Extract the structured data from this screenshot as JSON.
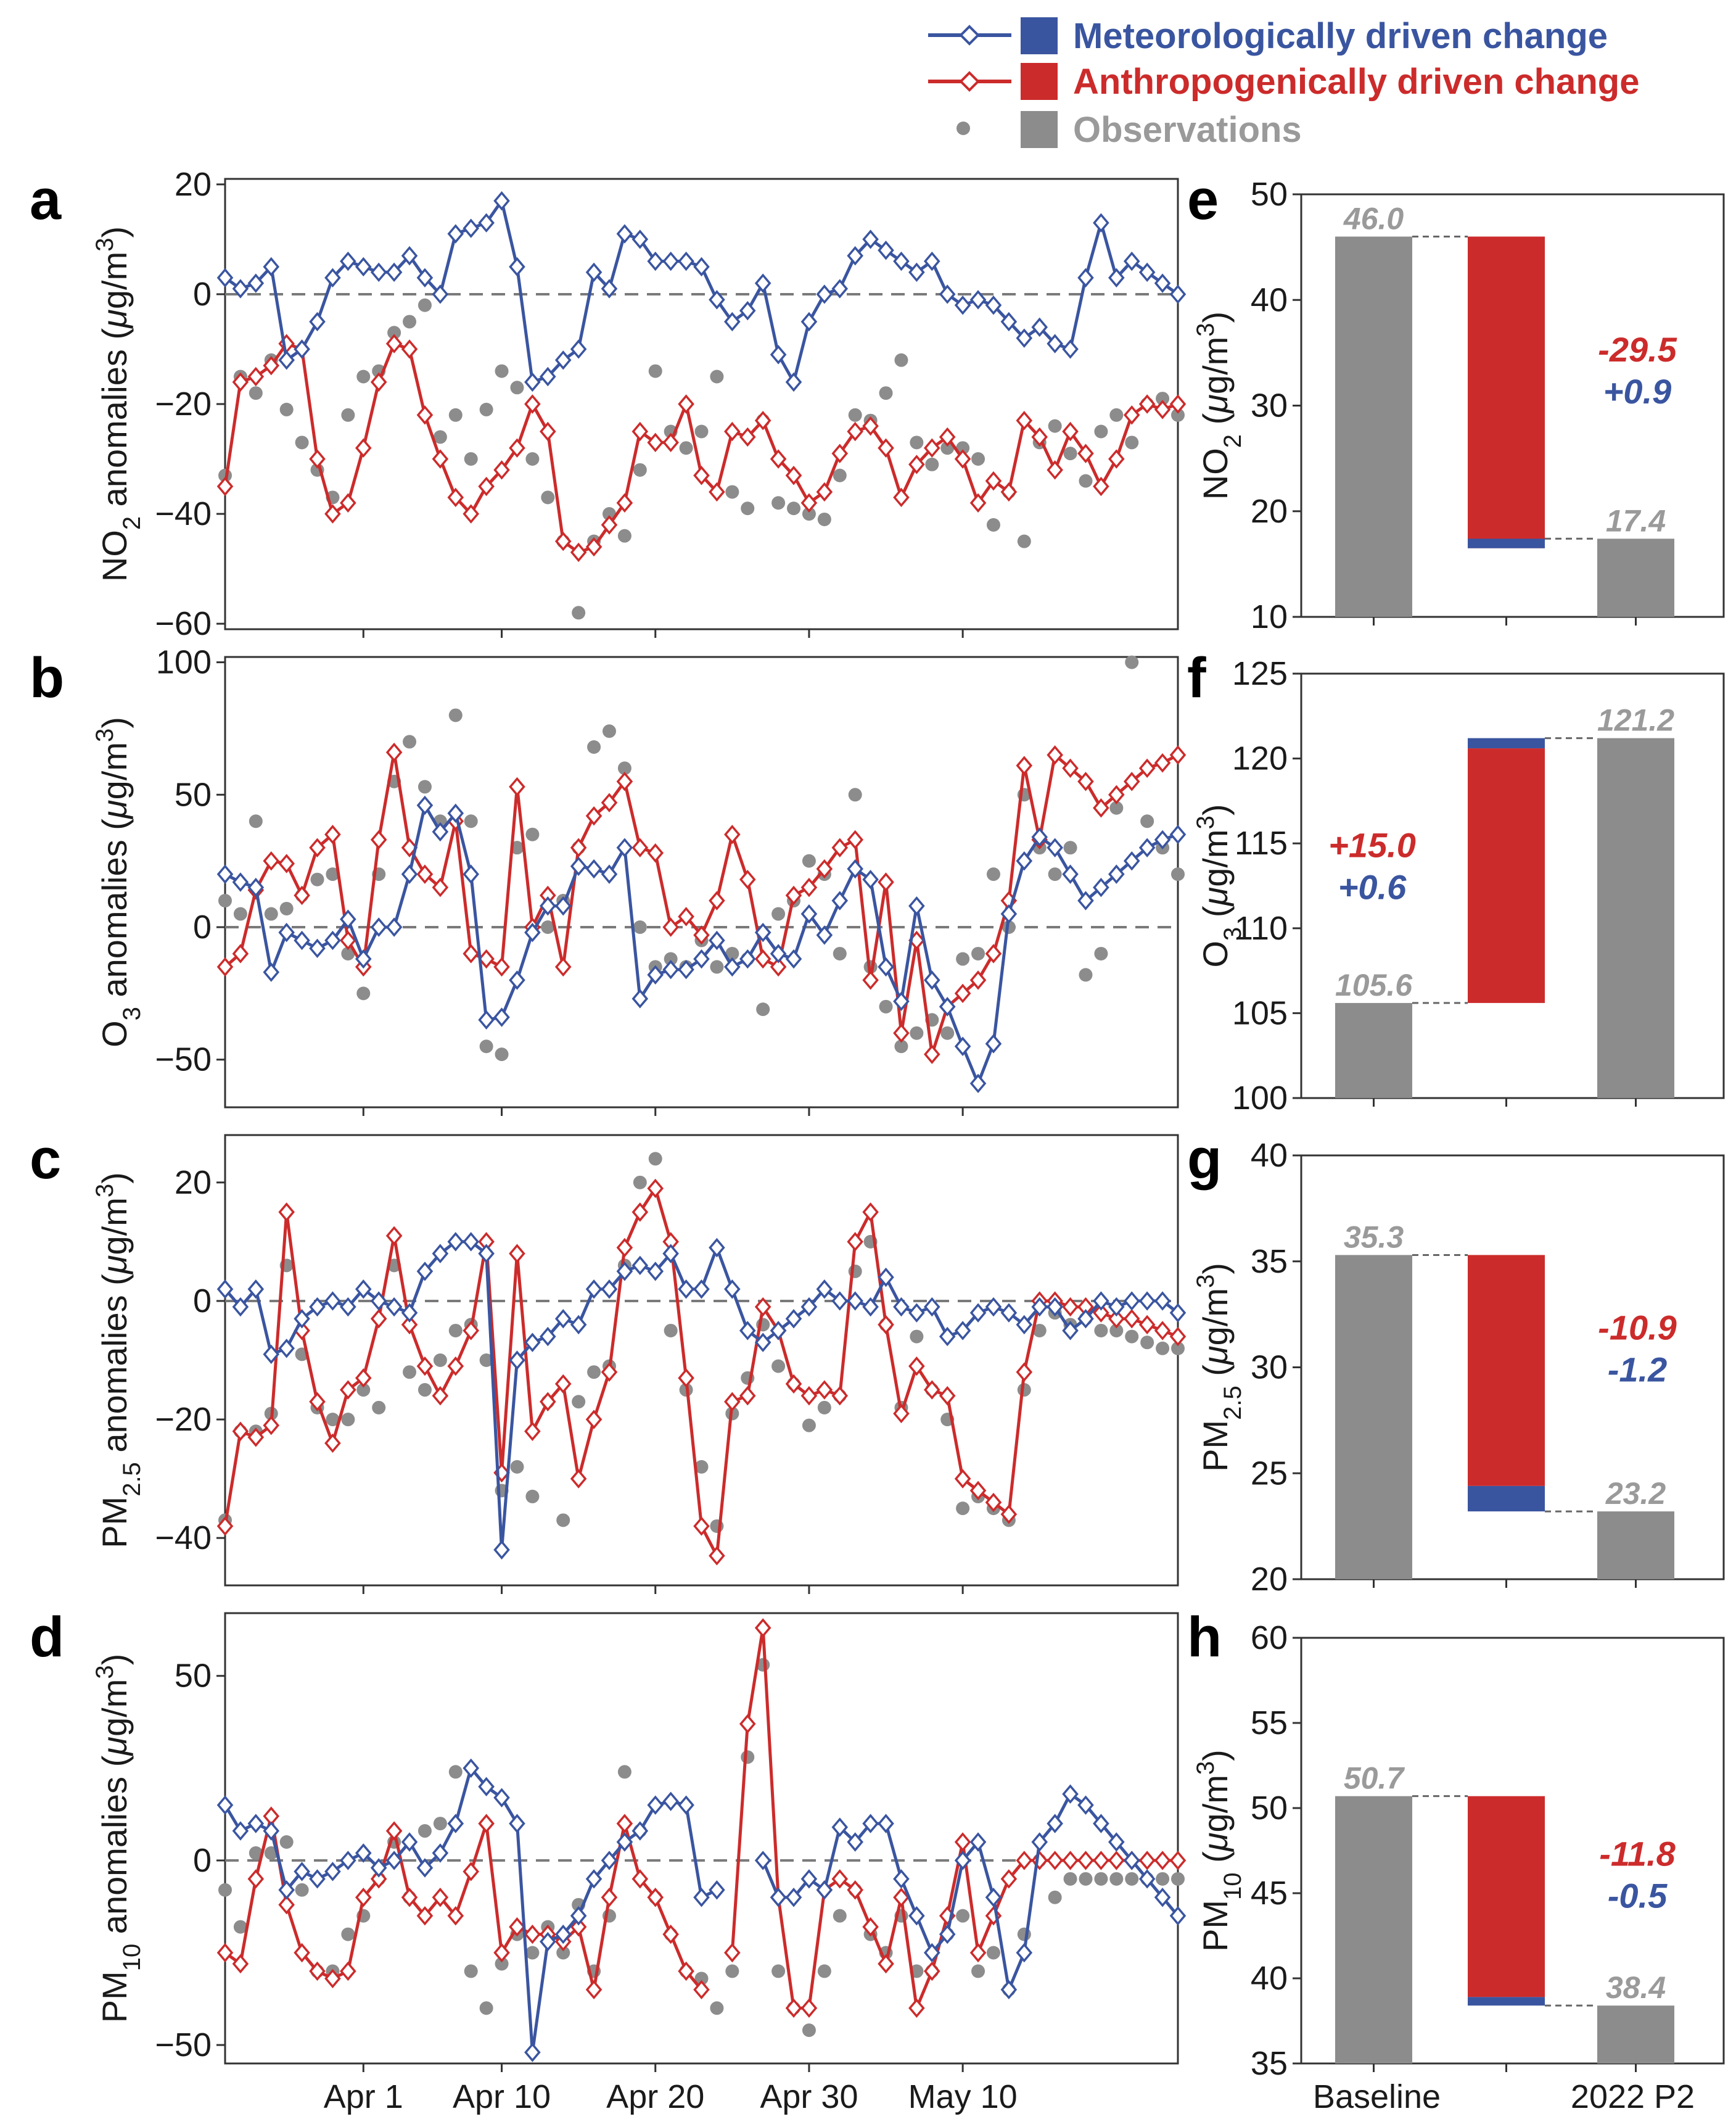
{
  "legend": {
    "met_label": "Meteorologically driven change",
    "anthro_label": "Anthropogenically driven change",
    "obs_label": "Observations",
    "met_color": "#3a55a0",
    "anthro_color": "#cc2b2b",
    "obs_color": "#8c8c8c"
  },
  "chart_data": [
    {
      "panel": "a",
      "type": "line",
      "ylabel": "NO2 anomalies (μg/m3)",
      "ylim": [
        -61,
        21
      ],
      "yticks": [
        20,
        0,
        -20,
        -40,
        -60
      ],
      "grid": false,
      "xticklabels": [
        "Apr 1",
        "Apr 10",
        "Apr 20",
        "Apr 30",
        "May 10"
      ],
      "x": [
        "Mar 23",
        "Mar 24",
        "Mar 25",
        "Mar 26",
        "Mar 27",
        "Mar 28",
        "Mar 29",
        "Mar 30",
        "Mar 31",
        "Apr 1",
        "Apr 2",
        "Apr 3",
        "Apr 4",
        "Apr 5",
        "Apr 6",
        "Apr 7",
        "Apr 8",
        "Apr 9",
        "Apr 10",
        "Apr 11",
        "Apr 12",
        "Apr 13",
        "Apr 14",
        "Apr 15",
        "Apr 16",
        "Apr 17",
        "Apr 18",
        "Apr 19",
        "Apr 20",
        "Apr 21",
        "Apr 22",
        "Apr 23",
        "Apr 24",
        "Apr 25",
        "Apr 26",
        "Apr 27",
        "Apr 28",
        "Apr 29",
        "Apr 30",
        "May 1",
        "May 2",
        "May 3",
        "May 4",
        "May 5",
        "May 6",
        "May 7",
        "May 8",
        "May 9",
        "May 10",
        "May 11",
        "May 12",
        "May 13",
        "May 14",
        "May 15",
        "May 16",
        "May 17",
        "May 18",
        "May 19",
        "May 20",
        "May 21",
        "May 22",
        "May 23",
        "May 24"
      ],
      "series": [
        {
          "name": "Meteorologically driven change",
          "values": [
            3,
            1,
            2,
            5,
            -12,
            -10,
            -5,
            3,
            6,
            5,
            4,
            4,
            7,
            3,
            0,
            11,
            12,
            13,
            17,
            5,
            -16,
            -15,
            -12,
            -10,
            4,
            1,
            11,
            10,
            6,
            6,
            6,
            5,
            -1,
            -5,
            -3,
            2,
            -11,
            -16,
            -5,
            0,
            1,
            7,
            10,
            8,
            6,
            4,
            6,
            0,
            -2,
            -1,
            -2,
            -5,
            -8,
            -6,
            -9,
            -10,
            3,
            13,
            3,
            6,
            4,
            2,
            0
          ]
        },
        {
          "name": "Anthropogenically driven change",
          "values": [
            -35,
            -16,
            -15,
            -13,
            -9,
            -10,
            -30,
            -40,
            -38,
            -28,
            -16,
            -9,
            -10,
            -22,
            -30,
            -37,
            -40,
            -35,
            -32,
            -28,
            -20,
            -25,
            -45,
            -47,
            -46,
            -42,
            -38,
            -25,
            -27,
            -27,
            -20,
            -33,
            -36,
            -25,
            -26,
            -23,
            -30,
            -33,
            -38,
            -36,
            -29,
            -25,
            -24,
            -28,
            -37,
            -31,
            -28,
            -26,
            -30,
            -38,
            -34,
            -36,
            -23,
            -26,
            -32,
            -25,
            -29,
            -35,
            -30,
            -22,
            -20,
            -21,
            -20
          ]
        },
        {
          "name": "Observations",
          "values": [
            -33,
            -15,
            -18,
            -12,
            -21,
            -27,
            -32,
            -37,
            -22,
            -15,
            -14,
            -7,
            -5,
            -2,
            -26,
            -22,
            -30,
            -21,
            -14,
            -17,
            -30,
            -37,
            -45,
            -58,
            -45,
            -40,
            -44,
            -32,
            -14,
            -25,
            -28,
            -25,
            -15,
            -36,
            -39,
            -23,
            -38,
            -39,
            -40,
            -41,
            -33,
            -22,
            -23,
            -18,
            -12,
            -27,
            -31,
            -28,
            -28,
            -30,
            -42,
            -36,
            -45,
            -27,
            -24,
            -29,
            -34,
            -25,
            -22,
            -27,
            -20,
            -19,
            -22
          ]
        }
      ]
    },
    {
      "panel": "b",
      "type": "line",
      "ylabel": "O3 anomalies (μg/m3)",
      "ylim": [
        -68,
        102
      ],
      "yticks": [
        100,
        50,
        0,
        -50
      ],
      "grid": false,
      "xticklabels": [
        "Apr 1",
        "Apr 10",
        "Apr 20",
        "Apr 30",
        "May 10"
      ],
      "series": [
        {
          "name": "Meteorologically driven change",
          "values": [
            20,
            17,
            15,
            -17,
            -2,
            -5,
            -8,
            -5,
            3,
            -12,
            0,
            0,
            20,
            46,
            36,
            43,
            20,
            -35,
            -34,
            -20,
            -2,
            8,
            8,
            23,
            22,
            20,
            30,
            -27,
            -18,
            -16,
            -16,
            -12,
            -5,
            -15,
            -12,
            -2,
            -10,
            -12,
            5,
            -3,
            10,
            22,
            18,
            -15,
            -28,
            8,
            -20,
            -30,
            -45,
            -59,
            -44,
            5,
            25,
            34,
            30,
            20,
            10,
            15,
            20,
            25,
            30,
            33,
            35
          ]
        },
        {
          "name": "Anthropogenically driven change",
          "values": [
            -15,
            -10,
            14,
            25,
            24,
            12,
            30,
            35,
            -5,
            -15,
            33,
            66,
            30,
            20,
            15,
            40,
            -10,
            -12,
            -15,
            53,
            0,
            12,
            -15,
            30,
            42,
            47,
            55,
            30,
            28,
            0,
            4,
            -3,
            10,
            35,
            18,
            -12,
            -15,
            12,
            15,
            22,
            30,
            33,
            -20,
            17,
            -40,
            -5,
            -48,
            -30,
            -25,
            -20,
            -10,
            10,
            61,
            33,
            65,
            60,
            55,
            45,
            50,
            55,
            60,
            62,
            65
          ]
        },
        {
          "name": "Observations",
          "values": [
            10,
            5,
            40,
            5,
            7,
            12,
            18,
            20,
            -10,
            -25,
            20,
            55,
            70,
            53,
            40,
            80,
            40,
            -45,
            -48,
            30,
            35,
            0,
            10,
            30,
            68,
            74,
            60,
            0,
            -15,
            -12,
            -15,
            -5,
            -15,
            -10,
            -12,
            -31,
            5,
            10,
            25,
            20,
            -10,
            50,
            -15,
            -30,
            -45,
            -40,
            -35,
            -40,
            -12,
            -10,
            20,
            0,
            50,
            30,
            20,
            30,
            -18,
            -10,
            45,
            100,
            40,
            30,
            20
          ]
        }
      ]
    },
    {
      "panel": "c",
      "type": "line",
      "ylabel": "PM2.5 anomalies (μg/m3)",
      "ylim": [
        -48,
        28
      ],
      "yticks": [
        20,
        0,
        -20,
        -40
      ],
      "grid": false,
      "xticklabels": [
        "Apr 1",
        "Apr 10",
        "Apr 20",
        "Apr 30",
        "May 10"
      ],
      "series": [
        {
          "name": "Meteorologically driven change",
          "values": [
            2,
            -1,
            2,
            -9,
            -8,
            -3,
            -1,
            0,
            -1,
            2,
            0,
            -1,
            -2,
            5,
            8,
            10,
            10,
            8,
            -42,
            -10,
            -7,
            -6,
            -3,
            -4,
            2,
            2,
            5,
            6,
            5,
            8,
            2,
            2,
            9,
            2,
            -5,
            -7,
            -5,
            -3,
            -1,
            2,
            0,
            0,
            -1,
            4,
            -1,
            -2,
            -1,
            -6,
            -5,
            -2,
            -1,
            -2,
            -4,
            -1,
            -1,
            -5,
            -3,
            0,
            -1,
            0,
            0,
            0,
            -2
          ]
        },
        {
          "name": "Anthropogenically driven change",
          "values": [
            -38,
            -22,
            -23,
            -21,
            15,
            -5,
            -17,
            -24,
            -15,
            -13,
            -3,
            11,
            -4,
            -11,
            -16,
            -11,
            -5,
            10,
            -29,
            8,
            -22,
            -17,
            -14,
            -30,
            -20,
            -12,
            9,
            15,
            19,
            10,
            -13,
            -38,
            -43,
            -17,
            -16,
            -1,
            -5,
            -14,
            -16,
            -15,
            -16,
            10,
            15,
            -4,
            -19,
            -11,
            -15,
            -16,
            -30,
            -32,
            -34,
            -36,
            -12,
            0,
            0,
            -1,
            -1,
            -2,
            -3,
            -3,
            -4,
            -5,
            -6
          ]
        },
        {
          "name": "Observations",
          "values": [
            -37,
            -22,
            -22,
            -19,
            6,
            -9,
            -18,
            -20,
            -20,
            -15,
            -18,
            6,
            -12,
            -15,
            -10,
            -5,
            -4,
            -10,
            -32,
            -28,
            -33,
            -17,
            -37,
            -17,
            -12,
            -11,
            6,
            20,
            24,
            -5,
            -15,
            -28,
            -38,
            -19,
            -13,
            -4,
            -11,
            -14,
            -21,
            -18,
            -16,
            5,
            10,
            -4,
            -18,
            -6,
            -15,
            -20,
            -35,
            -33,
            -35,
            -37,
            -15,
            -5,
            -2,
            -4,
            -3,
            -5,
            -5,
            -6,
            -7,
            -8,
            -8
          ]
        }
      ]
    },
    {
      "panel": "d",
      "type": "line",
      "ylabel": "PM10 anomalies (μg/m3)",
      "ylim": [
        -55,
        67
      ],
      "yticks": [
        50,
        0,
        -50
      ],
      "grid": false,
      "xticklabels": [
        "Apr 1",
        "Apr 10",
        "Apr 20",
        "Apr 30",
        "May 10"
      ],
      "series": [
        {
          "name": "Meteorologically driven change",
          "values": [
            15,
            8,
            10,
            8,
            -8,
            -3,
            -5,
            -3,
            0,
            2,
            -2,
            0,
            5,
            -2,
            2,
            10,
            25,
            20,
            17,
            10,
            -52,
            -22,
            -20,
            -15,
            -5,
            0,
            5,
            8,
            15,
            16,
            15,
            -10,
            -8,
            null,
            null,
            0,
            -10,
            -10,
            -5,
            -8,
            9,
            5,
            10,
            10,
            -5,
            -15,
            -25,
            -20,
            0,
            5,
            -10,
            -35,
            -25,
            5,
            10,
            18,
            15,
            10,
            5,
            0,
            -5,
            -10,
            -15
          ]
        },
        {
          "name": "Anthropogenically driven change",
          "values": [
            -25,
            -28,
            -5,
            12,
            -12,
            -25,
            -30,
            -32,
            -30,
            -10,
            -5,
            8,
            -10,
            -15,
            -10,
            -15,
            -3,
            10,
            -25,
            -18,
            -20,
            -20,
            -22,
            -18,
            -35,
            -10,
            10,
            -5,
            -10,
            -20,
            -30,
            -35,
            null,
            -25,
            37,
            63,
            -10,
            -40,
            -40,
            -8,
            -5,
            -8,
            -18,
            -28,
            -10,
            -40,
            -30,
            -15,
            5,
            -25,
            -15,
            -5,
            0,
            0,
            0,
            0,
            0,
            0,
            0,
            0,
            0,
            0,
            0
          ]
        },
        {
          "name": "Observations",
          "values": [
            -8,
            -18,
            2,
            2,
            5,
            -8,
            -30,
            -30,
            -20,
            -15,
            -5,
            5,
            -10,
            8,
            10,
            24,
            -30,
            -40,
            -28,
            -20,
            -25,
            -18,
            -25,
            -12,
            -30,
            -15,
            24,
            8,
            -10,
            -20,
            -30,
            -32,
            -40,
            -30,
            28,
            53,
            -30,
            -40,
            -46,
            -30,
            -15,
            -8,
            -20,
            -25,
            -15,
            -30,
            -30,
            -20,
            -15,
            -30,
            -25,
            -35,
            -20,
            0,
            -10,
            -5,
            -5,
            -5,
            -5,
            -5,
            -5,
            -5,
            -5
          ]
        }
      ]
    },
    {
      "panel": "e",
      "type": "bar",
      "ylabel": "NO2 (μg/m3)",
      "ylim": [
        10,
        50
      ],
      "yticks": [
        50,
        40,
        30,
        20,
        10
      ],
      "categories": [
        "Baseline",
        "",
        "2022 P2"
      ],
      "baseline": 46.0,
      "baseline_label": "46.0",
      "final": 17.4,
      "final_label": "17.4",
      "anthropogenic": -29.5,
      "anthropogenic_label": "-29.5",
      "meteorological": 0.9,
      "meteorological_label": "+0.9"
    },
    {
      "panel": "f",
      "type": "bar",
      "ylabel": "O3 (μg/m3)",
      "ylim": [
        100,
        125
      ],
      "yticks": [
        125,
        120,
        115,
        110,
        105,
        100
      ],
      "categories": [
        "Baseline",
        "",
        "2022 P2"
      ],
      "baseline": 105.6,
      "baseline_label": "105.6",
      "final": 121.2,
      "final_label": "121.2",
      "anthropogenic": 15.0,
      "anthropogenic_label": "+15.0",
      "meteorological": 0.6,
      "meteorological_label": "+0.6"
    },
    {
      "panel": "g",
      "type": "bar",
      "ylabel": "PM2.5 (μg/m3)",
      "ylim": [
        20,
        40
      ],
      "yticks": [
        40,
        35,
        30,
        25,
        20
      ],
      "categories": [
        "Baseline",
        "",
        "2022 P2"
      ],
      "baseline": 35.3,
      "baseline_label": "35.3",
      "final": 23.2,
      "final_label": "23.2",
      "anthropogenic": -10.9,
      "anthropogenic_label": "-10.9",
      "meteorological": -1.2,
      "meteorological_label": "-1.2"
    },
    {
      "panel": "h",
      "type": "bar",
      "ylabel": "PM10 (μg/m3)",
      "ylim": [
        35,
        60
      ],
      "yticks": [
        60,
        55,
        50,
        45,
        40,
        35
      ],
      "categories": [
        "Baseline",
        "",
        "2022 P2"
      ],
      "baseline": 50.7,
      "baseline_label": "50.7",
      "final": 38.4,
      "final_label": "38.4",
      "anthropogenic": -11.8,
      "anthropogenic_label": "-11.8",
      "meteorological": -0.5,
      "meteorological_label": "-0.5"
    }
  ]
}
